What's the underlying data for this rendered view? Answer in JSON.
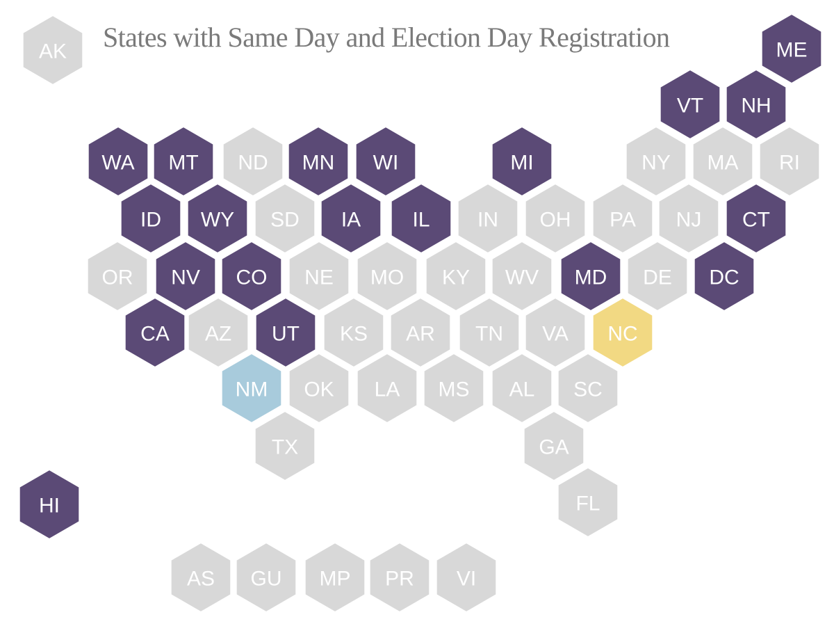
{
  "title": "States with Same Day and Election Day Registration",
  "colors": {
    "background": "#ffffff",
    "title_text": "#7a7a7a",
    "tile_stroke": "#ffffff",
    "categories": {
      "registration": {
        "fill": "#5b4a76",
        "text": "#ffffff"
      },
      "nm": {
        "fill": "#a8cbdc",
        "text": "#ffffff"
      },
      "nc": {
        "fill": "#f2d983",
        "text": "#ffffff"
      },
      "none": {
        "fill": "#d8d8d8",
        "text": "#ffffff"
      }
    }
  },
  "tiles": [
    {
      "abbr": "AK",
      "category": "none"
    },
    {
      "abbr": "ME",
      "category": "registration"
    },
    {
      "abbr": "VT",
      "category": "registration"
    },
    {
      "abbr": "NH",
      "category": "registration"
    },
    {
      "abbr": "WA",
      "category": "registration"
    },
    {
      "abbr": "MT",
      "category": "registration"
    },
    {
      "abbr": "ND",
      "category": "none"
    },
    {
      "abbr": "MN",
      "category": "registration"
    },
    {
      "abbr": "WI",
      "category": "registration"
    },
    {
      "abbr": "MI",
      "category": "registration"
    },
    {
      "abbr": "NY",
      "category": "none"
    },
    {
      "abbr": "MA",
      "category": "none"
    },
    {
      "abbr": "RI",
      "category": "none"
    },
    {
      "abbr": "ID",
      "category": "registration"
    },
    {
      "abbr": "WY",
      "category": "registration"
    },
    {
      "abbr": "SD",
      "category": "none"
    },
    {
      "abbr": "IA",
      "category": "registration"
    },
    {
      "abbr": "IL",
      "category": "registration"
    },
    {
      "abbr": "IN",
      "category": "none"
    },
    {
      "abbr": "OH",
      "category": "none"
    },
    {
      "abbr": "PA",
      "category": "none"
    },
    {
      "abbr": "NJ",
      "category": "none"
    },
    {
      "abbr": "CT",
      "category": "registration"
    },
    {
      "abbr": "OR",
      "category": "none"
    },
    {
      "abbr": "NV",
      "category": "registration"
    },
    {
      "abbr": "CO",
      "category": "registration"
    },
    {
      "abbr": "NE",
      "category": "none"
    },
    {
      "abbr": "MO",
      "category": "none"
    },
    {
      "abbr": "KY",
      "category": "none"
    },
    {
      "abbr": "WV",
      "category": "none"
    },
    {
      "abbr": "MD",
      "category": "registration"
    },
    {
      "abbr": "DE",
      "category": "none"
    },
    {
      "abbr": "DC",
      "category": "registration"
    },
    {
      "abbr": "CA",
      "category": "registration"
    },
    {
      "abbr": "AZ",
      "category": "none"
    },
    {
      "abbr": "UT",
      "category": "registration"
    },
    {
      "abbr": "KS",
      "category": "none"
    },
    {
      "abbr": "AR",
      "category": "none"
    },
    {
      "abbr": "TN",
      "category": "none"
    },
    {
      "abbr": "VA",
      "category": "none"
    },
    {
      "abbr": "NC",
      "category": "nc"
    },
    {
      "abbr": "NM",
      "category": "nm"
    },
    {
      "abbr": "OK",
      "category": "none"
    },
    {
      "abbr": "LA",
      "category": "none"
    },
    {
      "abbr": "MS",
      "category": "none"
    },
    {
      "abbr": "AL",
      "category": "none"
    },
    {
      "abbr": "SC",
      "category": "none"
    },
    {
      "abbr": "TX",
      "category": "none"
    },
    {
      "abbr": "GA",
      "category": "none"
    },
    {
      "abbr": "FL",
      "category": "none"
    },
    {
      "abbr": "HI",
      "category": "registration"
    },
    {
      "abbr": "AS",
      "category": "none"
    },
    {
      "abbr": "GU",
      "category": "none"
    },
    {
      "abbr": "MP",
      "category": "none"
    },
    {
      "abbr": "PR",
      "category": "none"
    },
    {
      "abbr": "VI",
      "category": "none"
    }
  ]
}
